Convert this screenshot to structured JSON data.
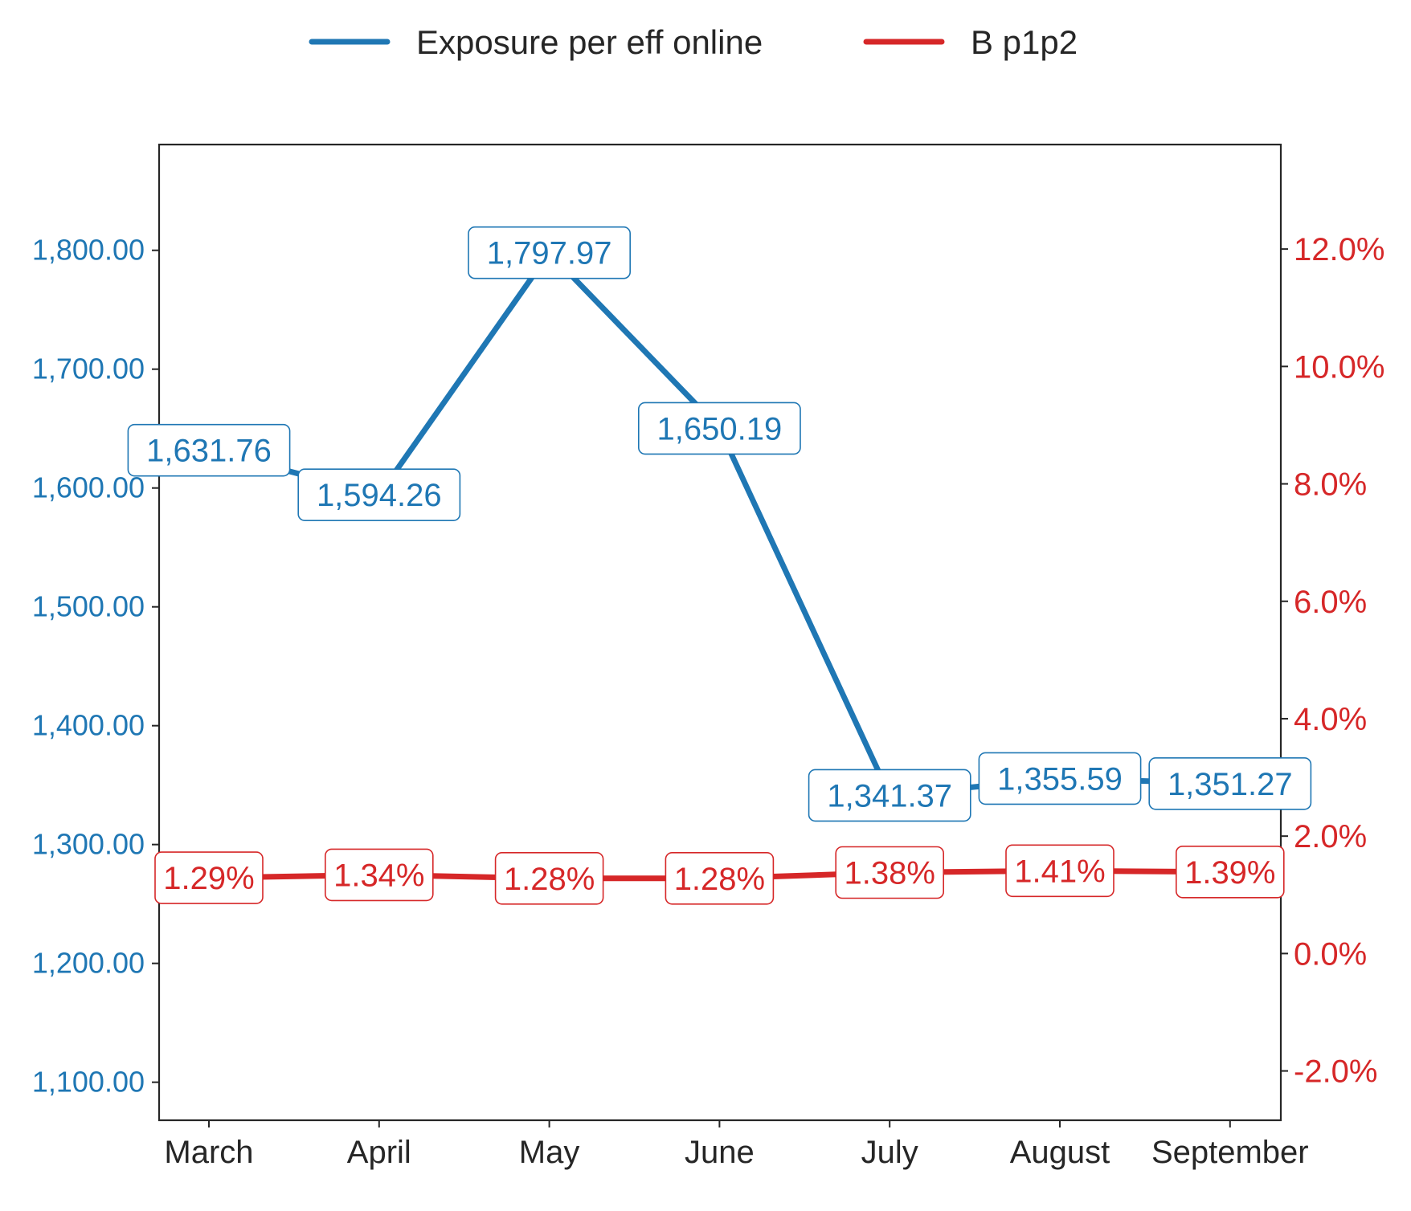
{
  "chart_data": {
    "type": "line",
    "categories": [
      "March",
      "April",
      "May",
      "June",
      "July",
      "August",
      "September"
    ],
    "series": [
      {
        "name": "Exposure per eff online",
        "axis": "left",
        "color": "#1f77b4",
        "values": [
          1631.76,
          1594.26,
          1797.97,
          1650.19,
          1341.37,
          1355.59,
          1351.27
        ],
        "labels": [
          "1,631.76",
          "1,594.26",
          "1,797.97",
          "1,650.19",
          "1,341.37",
          "1,355.59",
          "1,351.27"
        ]
      },
      {
        "name": "B p1p2",
        "axis": "right",
        "color": "#d62728",
        "values": [
          1.29,
          1.34,
          1.28,
          1.28,
          1.38,
          1.41,
          1.39
        ],
        "labels": [
          "1.29%",
          "1.34%",
          "1.28%",
          "1.28%",
          "1.38%",
          "1.41%",
          "1.39%"
        ]
      }
    ],
    "y_left": {
      "ticks": [
        1100,
        1200,
        1300,
        1400,
        1500,
        1600,
        1700,
        1800
      ],
      "tick_labels": [
        "1,100.00",
        "1,200.00",
        "1,300.00",
        "1,400.00",
        "1,500.00",
        "1,600.00",
        "1,700.00",
        "1,800.00"
      ],
      "range": [
        1068,
        1889
      ],
      "color": "#1f77b4"
    },
    "y_right": {
      "ticks": [
        -2,
        0,
        2,
        4,
        6,
        8,
        10,
        12
      ],
      "tick_labels": [
        "-2.0%",
        "0.0%",
        "2.0%",
        "4.0%",
        "6.0%",
        "8.0%",
        "10.0%",
        "12.0%"
      ],
      "range": [
        -2.84,
        13.78
      ],
      "color": "#d62728"
    },
    "legend": {
      "placement": "top-center"
    },
    "grid": false
  }
}
